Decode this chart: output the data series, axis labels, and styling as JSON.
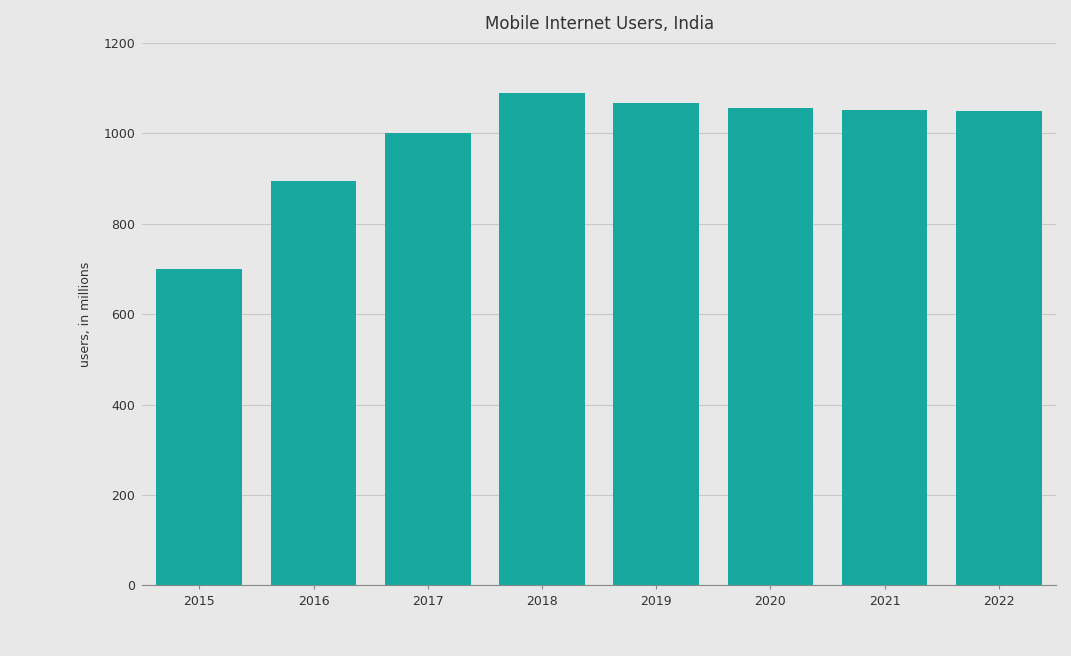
{
  "title": "Mobile Internet Users, India",
  "categories": [
    "2015",
    "2016",
    "2017",
    "2018",
    "2019",
    "2020",
    "2021",
    "2022"
  ],
  "values": [
    700,
    895,
    1000,
    1090,
    1068,
    1057,
    1052,
    1050
  ],
  "bar_color": "#17a8a0",
  "ylabel": "users, in millions",
  "ylim": [
    0,
    1200
  ],
  "yticks": [
    0,
    200,
    400,
    600,
    800,
    1000,
    1200
  ],
  "background_color": "#e8e8e8",
  "plot_bg_color": "#e8e8e8",
  "grid_color": "#c8c8c8",
  "title_fontsize": 12,
  "label_fontsize": 9,
  "tick_fontsize": 9,
  "bar_width": 0.75,
  "xlim_left": -0.5,
  "xlim_right": 7.5
}
